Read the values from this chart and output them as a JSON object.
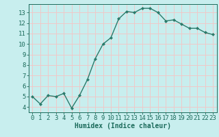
{
  "x": [
    0,
    1,
    2,
    3,
    4,
    5,
    6,
    7,
    8,
    9,
    10,
    11,
    12,
    13,
    14,
    15,
    16,
    17,
    18,
    19,
    20,
    21,
    22,
    23
  ],
  "y": [
    5.0,
    4.3,
    5.1,
    5.0,
    5.3,
    3.9,
    5.1,
    6.6,
    8.6,
    10.0,
    10.6,
    12.4,
    13.1,
    13.0,
    13.4,
    13.4,
    13.0,
    12.2,
    12.3,
    11.9,
    11.5,
    11.5,
    11.1,
    10.9
  ],
  "line_color": "#2a7a6a",
  "marker": "D",
  "markersize": 2.2,
  "linewidth": 1.0,
  "bg_color": "#c8eeee",
  "grid_color": "#f0c8c8",
  "xlabel": "Humidex (Indice chaleur)",
  "xlabel_fontsize": 7,
  "xlabel_color": "#1a6a5a",
  "tick_color": "#1a6a5a",
  "tick_fontsize": 6.5,
  "ylim": [
    3.5,
    13.8
  ],
  "xlim": [
    -0.5,
    23.5
  ],
  "yticks": [
    4,
    5,
    6,
    7,
    8,
    9,
    10,
    11,
    12,
    13
  ],
  "xticks": [
    0,
    1,
    2,
    3,
    4,
    5,
    6,
    7,
    8,
    9,
    10,
    11,
    12,
    13,
    14,
    15,
    16,
    17,
    18,
    19,
    20,
    21,
    22,
    23
  ]
}
